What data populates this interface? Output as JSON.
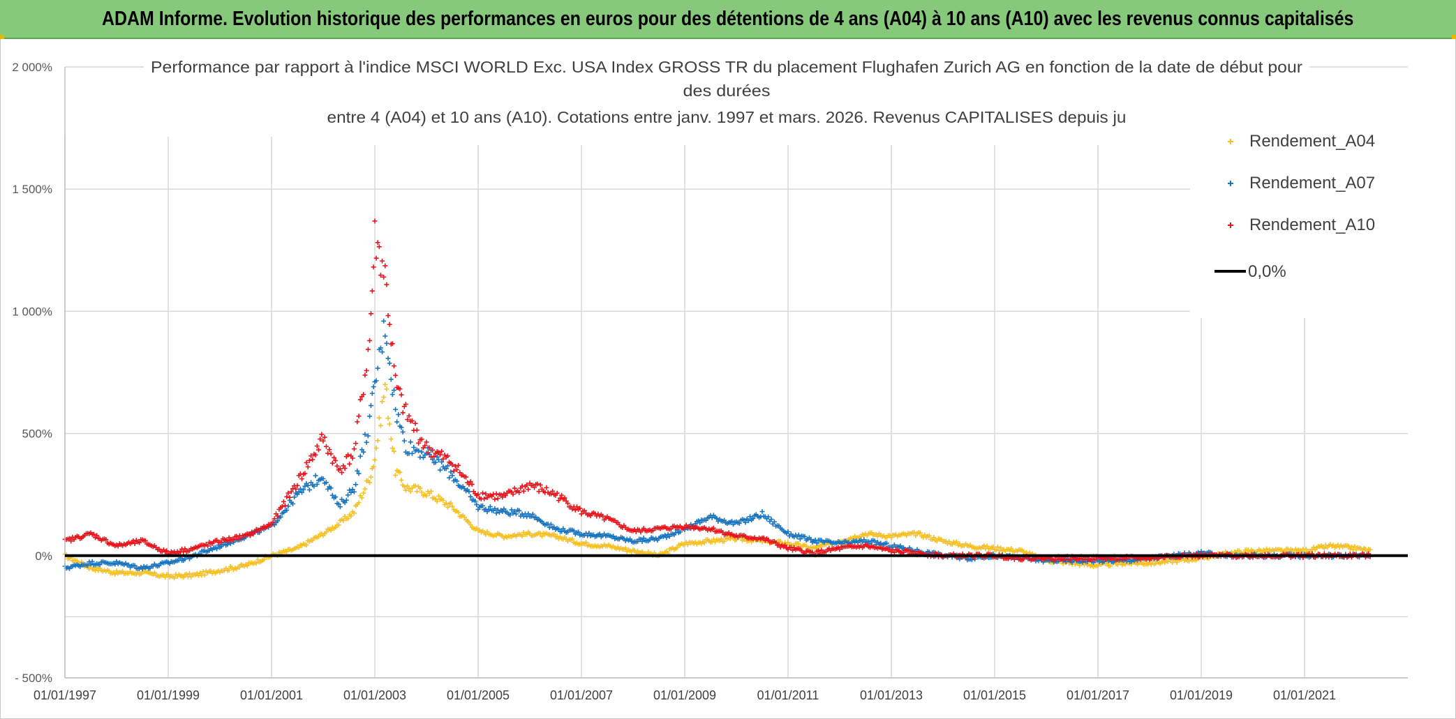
{
  "header": {
    "title": "ADAM Informe. Evolution historique des performances en euros pour des détentions de 4 ans (A04) à 10 ans (A10) avec les revenus connus capitalisés"
  },
  "chart_data": {
    "type": "scatter",
    "title_lines": [
      "Performance par rapport à l'indice MSCI WORLD Exc. USA Index GROSS TR  du placement Flughafen Zurich AG en fonction de la date de début pour",
      "des durées",
      "entre 4 (A04) et 10 ans (A10). Cotations entre janv. 1997 et mars. 2026. Revenus CAPITALISES depuis ju"
    ],
    "xlabel": "",
    "ylabel": "",
    "x_tick_labels": [
      "01/01/1997",
      "01/01/1999",
      "01/01/2001",
      "01/01/2003",
      "01/01/2005",
      "01/01/2007",
      "01/01/2009",
      "01/01/2011",
      "01/01/2013",
      "01/01/2015",
      "01/01/2017",
      "01/01/2019",
      "01/01/2021"
    ],
    "x_range": [
      1997.0,
      2023.0
    ],
    "y_tick_labels": [
      "- 500%",
      "0%",
      "500%",
      "1 000%",
      "1 500%",
      "2 000%"
    ],
    "y_tick_values": [
      -500,
      0,
      500,
      1000,
      1500,
      2000
    ],
    "ylim": [
      -500,
      2000
    ],
    "legend_position": "top-right",
    "reference_line": {
      "name": "0,0%",
      "value": 0,
      "color": "#000000"
    },
    "series": [
      {
        "name": "Rendement_A04",
        "color": "#f5c026",
        "x": [
          1997.0,
          1997.5,
          1998.0,
          1998.5,
          1999.0,
          1999.5,
          2000.0,
          2000.5,
          2001.0,
          2001.5,
          2002.0,
          2002.3,
          2002.6,
          2002.9,
          2003.0,
          2003.2,
          2003.4,
          2003.6,
          2004.0,
          2004.5,
          2005.0,
          2005.5,
          2006.0,
          2006.5,
          2007.0,
          2007.5,
          2008.0,
          2008.5,
          2009.0,
          2009.5,
          2010.0,
          2010.5,
          2011.0,
          2011.5,
          2012.0,
          2012.5,
          2013.0,
          2013.5,
          2014.0,
          2014.5,
          2015.0,
          2015.5,
          2016.0,
          2016.5,
          2017.0,
          2017.5,
          2018.0,
          2018.5,
          2019.0,
          2019.5,
          2020.0,
          2020.5,
          2021.0,
          2021.5,
          2022.0,
          2022.3
        ],
        "y": [
          0,
          -50,
          -70,
          -70,
          -85,
          -80,
          -60,
          -40,
          0,
          30,
          90,
          130,
          180,
          320,
          400,
          700,
          350,
          280,
          260,
          200,
          100,
          80,
          90,
          80,
          50,
          40,
          20,
          0,
          50,
          60,
          70,
          60,
          50,
          30,
          60,
          90,
          80,
          90,
          60,
          40,
          30,
          20,
          -20,
          -30,
          -40,
          -30,
          -30,
          -20,
          -10,
          10,
          20,
          20,
          20,
          40,
          30,
          20
        ]
      },
      {
        "name": "Rendement_A07",
        "color": "#1874bf",
        "x": [
          1997.0,
          1997.5,
          1998.0,
          1998.5,
          1999.0,
          1999.5,
          2000.0,
          2000.5,
          2001.0,
          2001.5,
          2002.0,
          2002.3,
          2002.6,
          2002.9,
          2003.0,
          2003.2,
          2003.4,
          2003.6,
          2004.0,
          2004.5,
          2005.0,
          2005.5,
          2006.0,
          2006.5,
          2007.0,
          2007.5,
          2008.0,
          2008.5,
          2009.0,
          2009.5,
          2010.0,
          2010.5,
          2011.0,
          2011.5,
          2012.0,
          2012.5,
          2013.0,
          2013.5,
          2014.0,
          2014.5,
          2015.0,
          2015.5,
          2016.0,
          2016.5,
          2017.0,
          2017.5,
          2018.0,
          2018.5,
          2019.0,
          2019.5,
          2020.0,
          2020.5,
          2021.0,
          2021.5,
          2022.0,
          2022.3
        ],
        "y": [
          -50,
          -30,
          -30,
          -50,
          -30,
          0,
          40,
          80,
          120,
          250,
          330,
          200,
          280,
          550,
          700,
          950,
          600,
          450,
          420,
          330,
          200,
          180,
          170,
          110,
          90,
          80,
          60,
          70,
          110,
          160,
          130,
          170,
          90,
          60,
          50,
          60,
          40,
          20,
          0,
          -10,
          0,
          -10,
          -20,
          -20,
          -20,
          -20,
          -10,
          0,
          10,
          0,
          0,
          0,
          0,
          0,
          0,
          0
        ]
      },
      {
        "name": "Rendement_A10",
        "color": "#e8141c",
        "x": [
          1997.0,
          1997.5,
          1998.0,
          1998.5,
          1999.0,
          1999.5,
          2000.0,
          2000.5,
          2001.0,
          2001.5,
          2002.0,
          2002.3,
          2002.6,
          2002.9,
          2003.0,
          2003.2,
          2003.4,
          2003.6,
          2004.0,
          2004.5,
          2005.0,
          2005.5,
          2006.0,
          2006.5,
          2007.0,
          2007.5,
          2008.0,
          2008.5,
          2009.0,
          2009.5,
          2010.0,
          2010.5,
          2011.0,
          2011.5,
          2012.0,
          2012.5,
          2013.0,
          2013.5,
          2014.0,
          2014.5,
          2015.0,
          2015.5,
          2016.0,
          2016.5,
          2017.0,
          2017.5,
          2018.0,
          2018.5,
          2019.0,
          2019.5,
          2020.0,
          2020.5,
          2021.0,
          2021.5,
          2022.0,
          2022.3
        ],
        "y": [
          60,
          90,
          40,
          60,
          10,
          30,
          60,
          80,
          130,
          300,
          480,
          350,
          420,
          880,
          1300,
          1150,
          700,
          580,
          440,
          380,
          250,
          240,
          290,
          250,
          180,
          150,
          100,
          110,
          120,
          110,
          80,
          70,
          30,
          10,
          30,
          40,
          20,
          10,
          0,
          0,
          0,
          -10,
          -10,
          -10,
          -10,
          -10,
          -10,
          0,
          0,
          0,
          0,
          0,
          0,
          0,
          0,
          0
        ]
      }
    ]
  }
}
